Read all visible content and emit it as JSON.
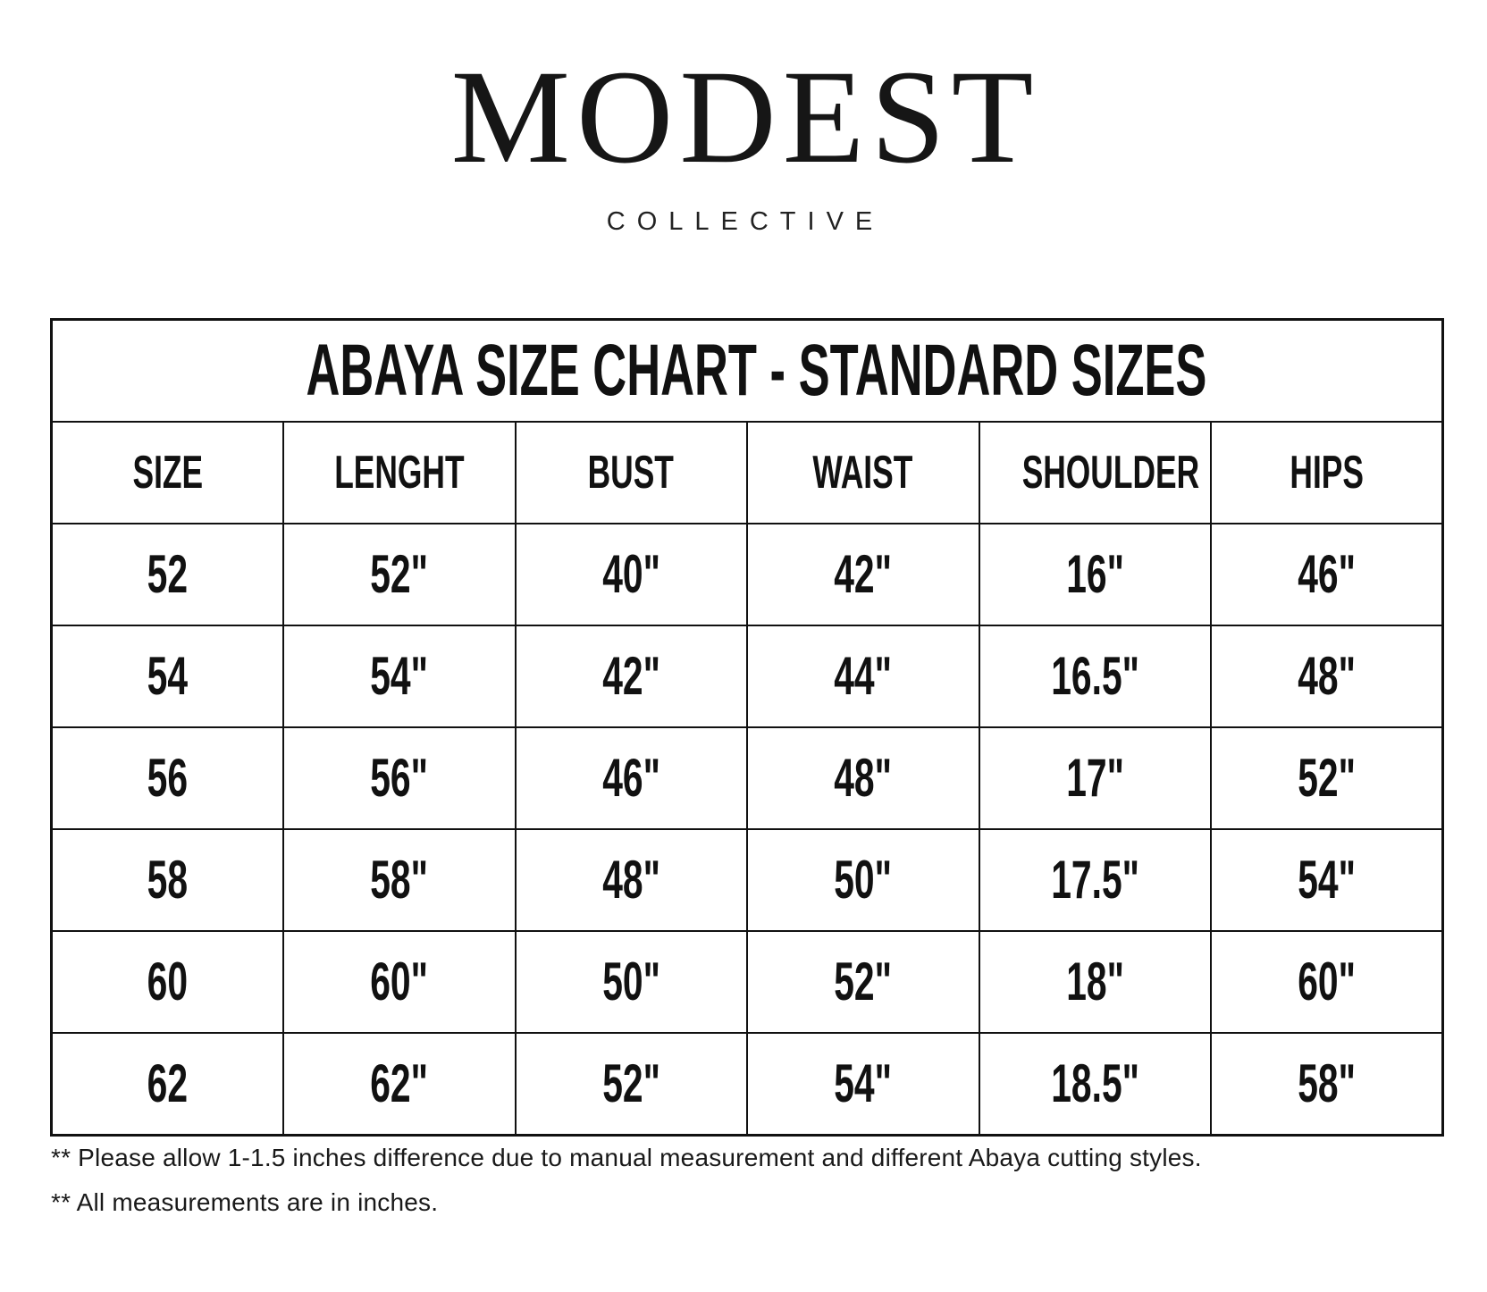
{
  "brand": {
    "name": "MODEST",
    "subtitle": "COLLECTIVE"
  },
  "table": {
    "title": "ABAYA SIZE CHART - STANDARD SIZES",
    "columns": [
      "SIZE",
      "LENGHT",
      "BUST",
      "WAIST",
      "SHOULDER",
      "HIPS"
    ],
    "rows": [
      [
        "52",
        "52\"",
        "40\"",
        "42\"",
        "16\"",
        "46\""
      ],
      [
        "54",
        "54\"",
        "42\"",
        "44\"",
        "16.5\"",
        "48\""
      ],
      [
        "56",
        "56\"",
        "46\"",
        "48\"",
        "17\"",
        "52\""
      ],
      [
        "58",
        "58\"",
        "48\"",
        "50\"",
        "17.5\"",
        "54\""
      ],
      [
        "60",
        "60\"",
        "50\"",
        "52\"",
        "18\"",
        "60\""
      ],
      [
        "62",
        "62\"",
        "52\"",
        "54\"",
        "18.5\"",
        "58\""
      ]
    ]
  },
  "footnotes": [
    "** Please allow 1-1.5 inches difference due to manual measurement and different Abaya cutting styles.",
    "** All measurements are in inches."
  ],
  "colors": {
    "background": "#ffffff",
    "text": "#111111",
    "border": "#111111"
  }
}
